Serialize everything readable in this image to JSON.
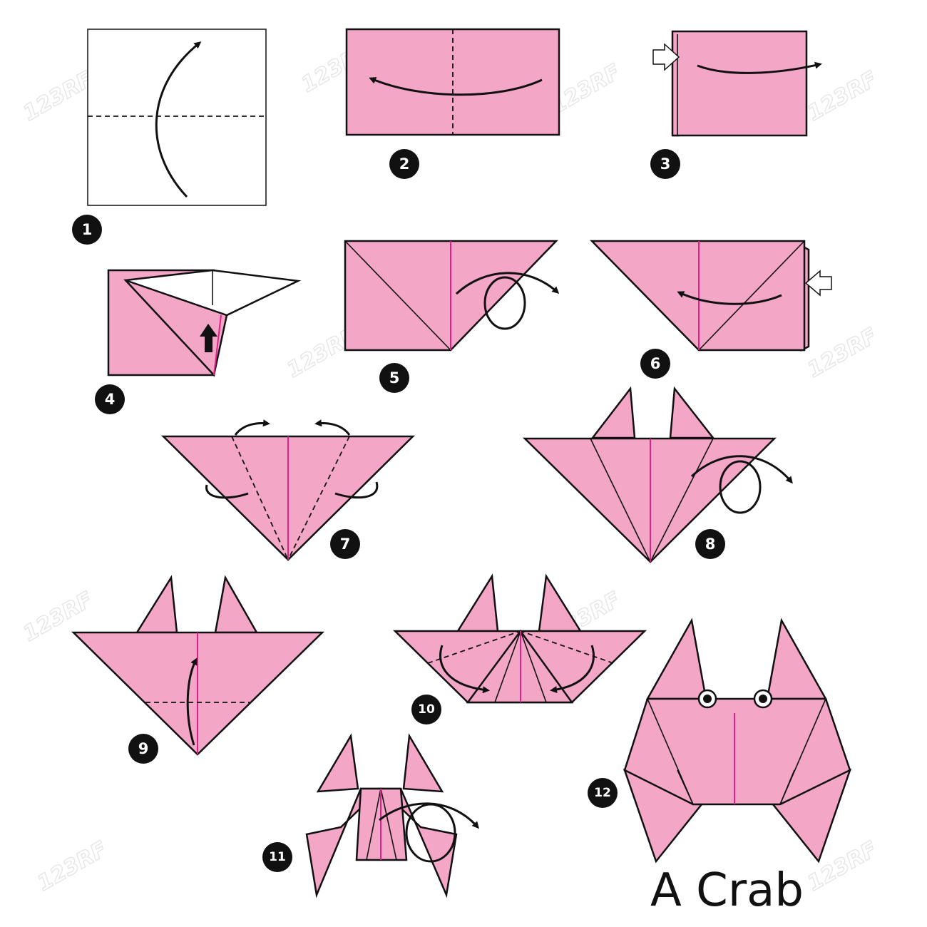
{
  "steps": [
    {
      "number": "1"
    },
    {
      "number": "2"
    },
    {
      "number": "3"
    },
    {
      "number": "4"
    },
    {
      "number": "5"
    },
    {
      "number": "6"
    },
    {
      "number": "7"
    },
    {
      "number": "8"
    },
    {
      "number": "9"
    },
    {
      "number": "10"
    },
    {
      "number": "11"
    },
    {
      "number": "12"
    }
  ],
  "title": "A Crab",
  "watermark": "123RF",
  "colors": {
    "paper": "#f4a6c7",
    "outline": "#111111",
    "center_crease": "#e0208a",
    "badge": "#111111",
    "watermark": "#e6e6e6"
  }
}
